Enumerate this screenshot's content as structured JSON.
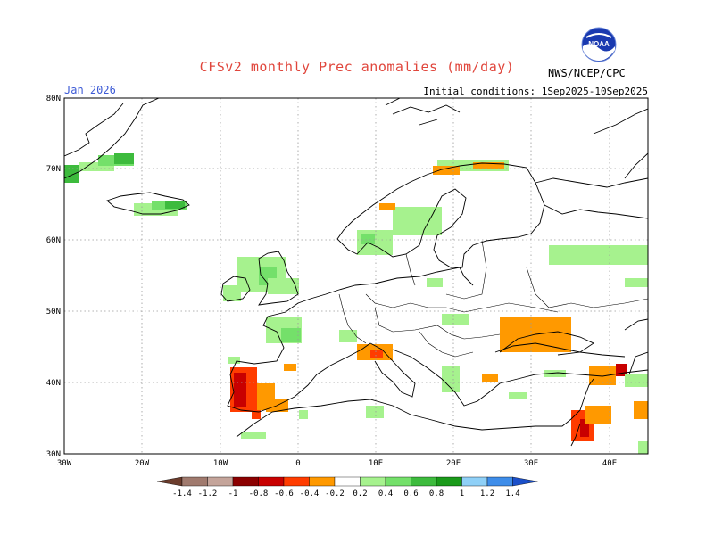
{
  "header": {
    "title": "CFSv2 monthly Prec anomalies (mm/day)",
    "valid_month": "Jan 2026",
    "initial_conditions": "Initial conditions: 1Sep2025-10Sep2025",
    "agency": "NWS/NCEP/CPC",
    "logo_text": "NOAA",
    "logo_icon": "noaa-logo-icon"
  },
  "axes": {
    "lon_labels": [
      "30W",
      "20W",
      "10W",
      "0",
      "10E",
      "20E",
      "30E",
      "40E"
    ],
    "lat_labels": [
      "30N",
      "40N",
      "50N",
      "60N",
      "70N",
      "80N"
    ]
  },
  "legend": {
    "labels": [
      "-1.4",
      "-1.2",
      "-1",
      "-0.8",
      "-0.6",
      "-0.4",
      "-0.2",
      "0.2",
      "0.4",
      "0.6",
      "0.8",
      "1",
      "1.2",
      "1.4"
    ],
    "colors": [
      "#6b3c2c",
      "#a07a6e",
      "#c4a49a",
      "#8b0000",
      "#c80000",
      "#ff3c00",
      "#ff9900",
      "#ffffff",
      "#a6f28e",
      "#74e06a",
      "#3dbb3d",
      "#1a9a1a",
      "#8fd0f7",
      "#3e8de9",
      "#1b4fc9"
    ]
  },
  "colors": {
    "title": "#e0463c",
    "valid_month": "#3d5bd6"
  }
}
